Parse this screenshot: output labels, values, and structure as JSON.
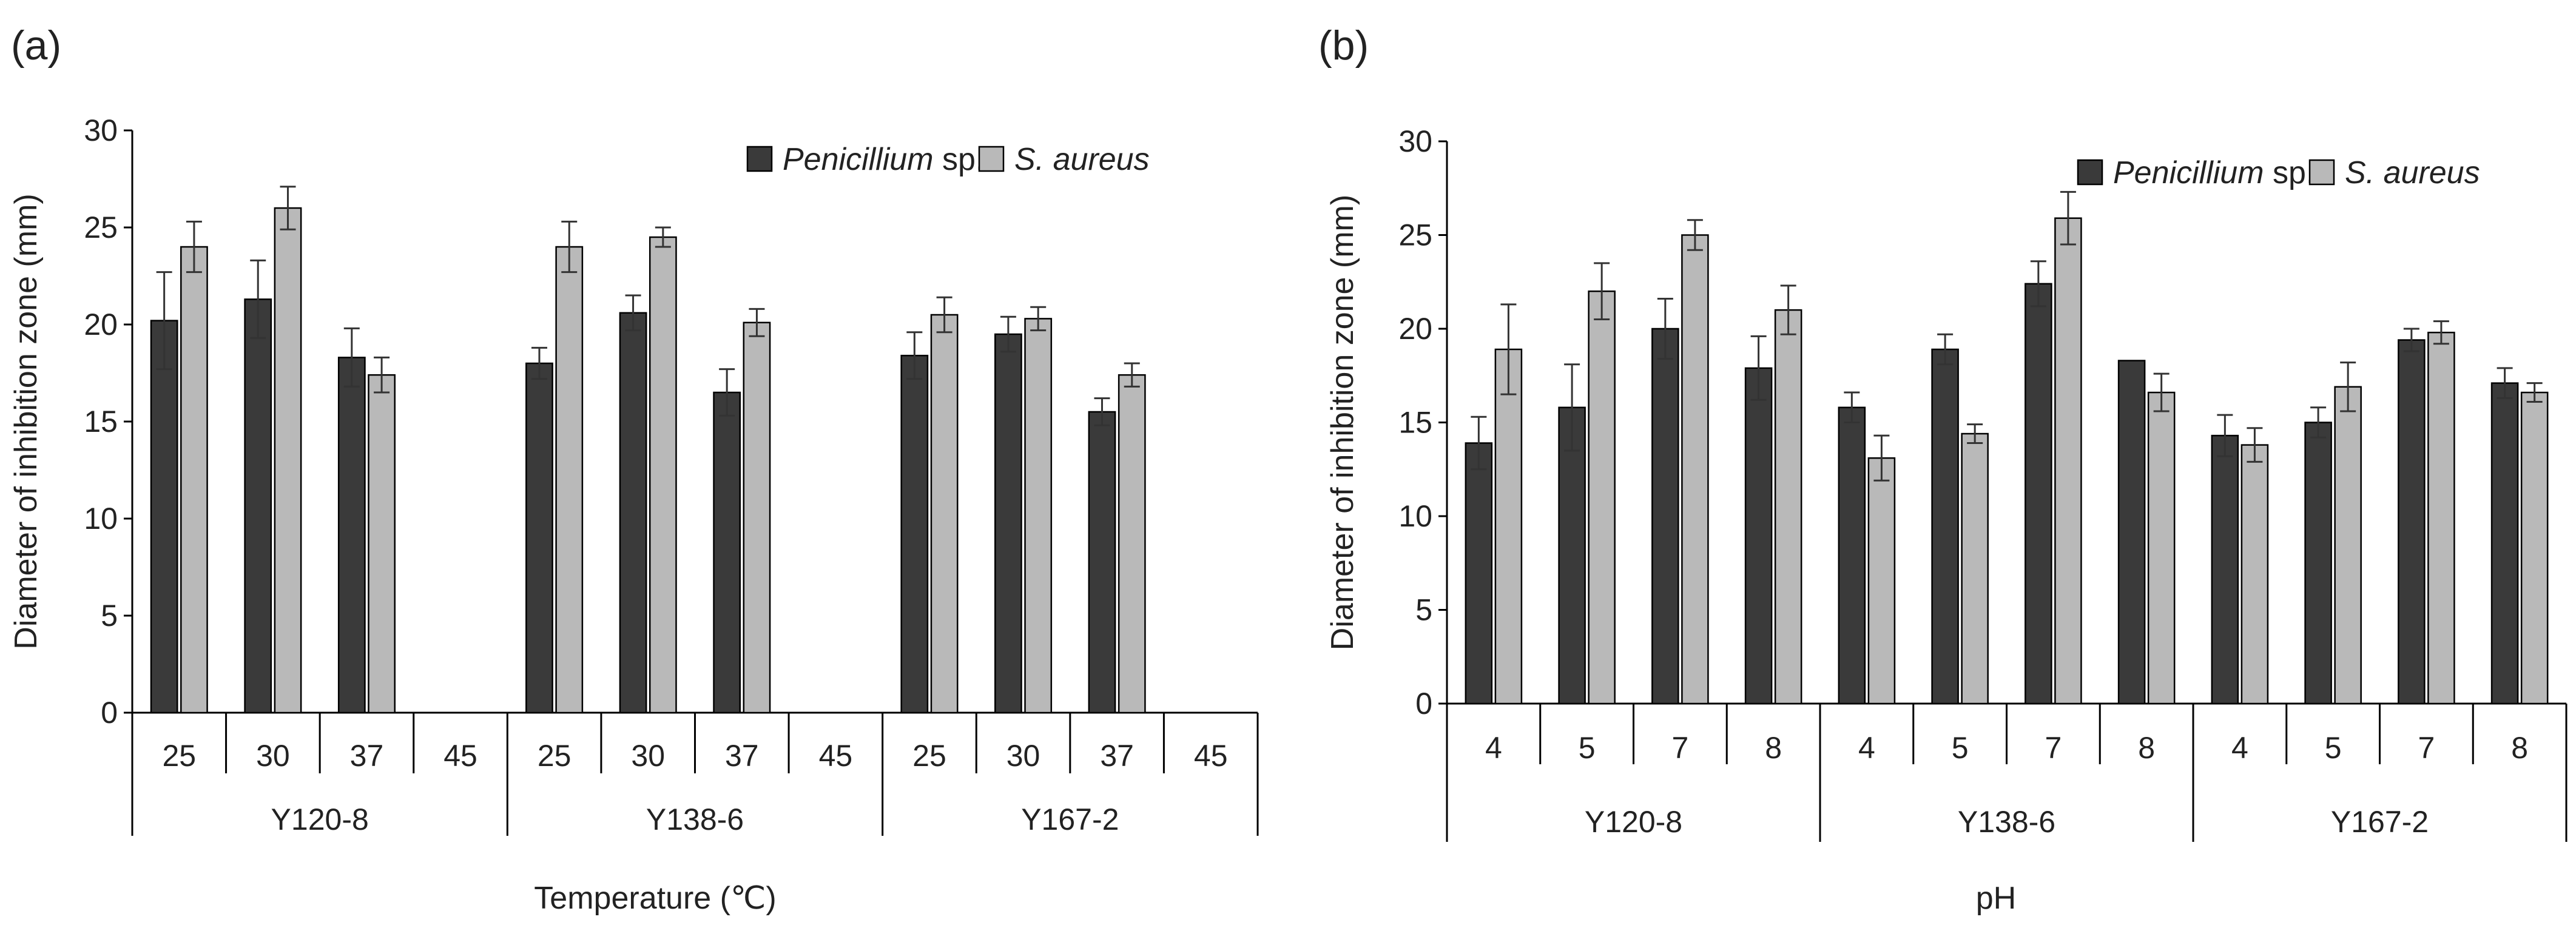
{
  "colors": {
    "penicillium": "#3a3a3a",
    "s_aureus": "#b9b9b9",
    "axis": "#000000",
    "text": "#222222"
  },
  "chart_data": [
    {
      "panel_label": "(a)",
      "type": "bar",
      "ylabel": "Diameter of inhibition zone (mm)",
      "xlabel": "Temperature (℃)",
      "ylim": [
        0,
        30
      ],
      "yticks": [
        0,
        5,
        10,
        15,
        20,
        25,
        30
      ],
      "groups": [
        "Y120-8",
        "Y138-6",
        "Y167-2"
      ],
      "categories": [
        "25",
        "30",
        "37",
        "45"
      ],
      "legend": [
        {
          "italic": "Penicillium",
          "suffix": " sp."
        },
        {
          "italic": "S. aureus",
          "suffix": ""
        }
      ],
      "legend_position": "top-right",
      "series": [
        {
          "name": "Penicillium sp.",
          "values": [
            [
              20.2,
              21.3,
              18.3,
              0
            ],
            [
              18.0,
              20.6,
              16.5,
              0
            ],
            [
              18.4,
              19.5,
              15.5,
              0
            ]
          ],
          "errors": [
            [
              2.5,
              2.0,
              1.5,
              0
            ],
            [
              0.8,
              0.9,
              1.2,
              0
            ],
            [
              1.2,
              0.9,
              0.7,
              0
            ]
          ]
        },
        {
          "name": "S. aureus",
          "values": [
            [
              24.0,
              26.0,
              17.4,
              0
            ],
            [
              24.0,
              24.5,
              20.1,
              0
            ],
            [
              20.5,
              20.3,
              17.4,
              0
            ]
          ],
          "errors": [
            [
              1.3,
              1.1,
              0.9,
              0
            ],
            [
              1.3,
              0.5,
              0.7,
              0
            ],
            [
              0.9,
              0.6,
              0.6,
              0
            ]
          ]
        }
      ]
    },
    {
      "panel_label": "(b)",
      "type": "bar",
      "ylabel": "Diameter of inhibition zone (mm)",
      "xlabel": "pH",
      "ylim": [
        0,
        30
      ],
      "yticks": [
        0,
        5,
        10,
        15,
        20,
        25,
        30
      ],
      "groups": [
        "Y120-8",
        "Y138-6",
        "Y167-2"
      ],
      "categories": [
        "4",
        "5",
        "7",
        "8"
      ],
      "legend": [
        {
          "italic": "Penicillium",
          "suffix": " sp."
        },
        {
          "italic": "S. aureus",
          "suffix": ""
        }
      ],
      "legend_position": "top-right",
      "series": [
        {
          "name": "Penicillium sp.",
          "values": [
            [
              13.9,
              15.8,
              20.0,
              17.9
            ],
            [
              15.8,
              18.9,
              22.4,
              18.3
            ],
            [
              14.3,
              15.0,
              19.4,
              17.1
            ]
          ],
          "errors": [
            [
              1.4,
              2.3,
              1.6,
              1.7
            ],
            [
              0.8,
              0.8,
              1.2,
              0
            ],
            [
              1.1,
              0.8,
              0.6,
              0.8
            ]
          ]
        },
        {
          "name": "S. aureus",
          "values": [
            [
              18.9,
              22.0,
              25.0,
              21.0
            ],
            [
              13.1,
              14.4,
              25.9,
              16.6
            ],
            [
              13.8,
              16.9,
              19.8,
              16.6
            ]
          ],
          "errors": [
            [
              2.4,
              1.5,
              0.8,
              1.3
            ],
            [
              1.2,
              0.5,
              1.4,
              1.0
            ],
            [
              0.9,
              1.3,
              0.6,
              0.5
            ]
          ]
        }
      ]
    }
  ]
}
